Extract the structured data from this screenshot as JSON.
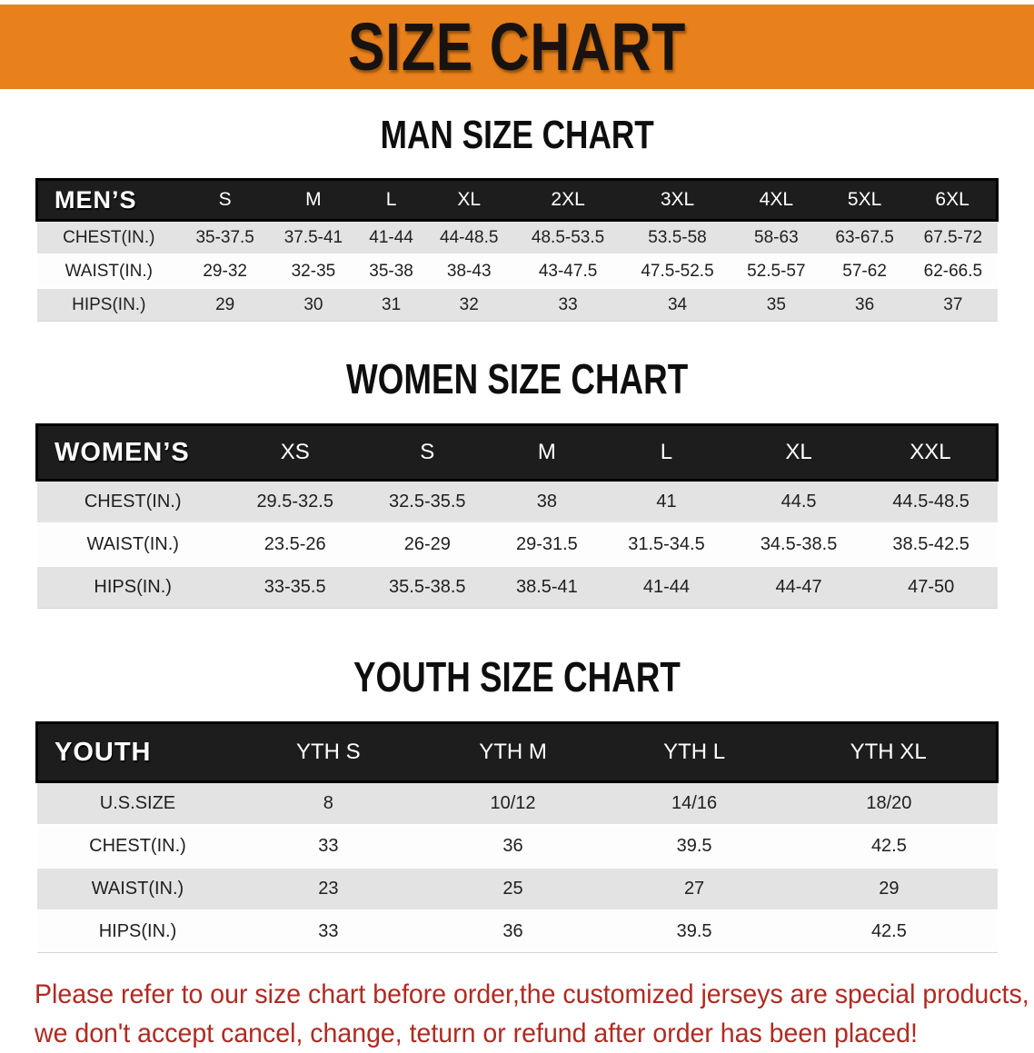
{
  "banner": {
    "title": "SIZE CHART",
    "bg_color": "#E8811B"
  },
  "sections": [
    {
      "heading": "MAN SIZE CHART",
      "table": {
        "header": [
          "MEN’S",
          "S",
          "M",
          "L",
          "XL",
          "2XL",
          "3XL",
          "4XL",
          "5XL",
          "6XL"
        ],
        "rows": [
          {
            "label": "CHEST(IN.)",
            "values": [
              "35-37.5",
              "37.5-41",
              "41-44",
              "44-48.5",
              "48.5-53.5",
              "53.5-58",
              "58-63",
              "63-67.5",
              "67.5-72"
            ]
          },
          {
            "label": "WAIST(IN.)",
            "values": [
              "29-32",
              "32-35",
              "35-38",
              "38-43",
              "43-47.5",
              "47.5-52.5",
              "52.5-57",
              "57-62",
              "62-66.5"
            ]
          },
          {
            "label": "HIPS(IN.)",
            "values": [
              "29",
              "30",
              "31",
              "32",
              "33",
              "34",
              "35",
              "36",
              "37"
            ]
          }
        ]
      }
    },
    {
      "heading": "WOMEN SIZE CHART",
      "table": {
        "header": [
          "WOMEN’S",
          "XS",
          "S",
          "M",
          "L",
          "XL",
          "XXL"
        ],
        "rows": [
          {
            "label": "CHEST(IN.)",
            "values": [
              "29.5-32.5",
              "32.5-35.5",
              "38",
              "41",
              "44.5",
              "44.5-48.5"
            ]
          },
          {
            "label": "WAIST(IN.)",
            "values": [
              "23.5-26",
              "26-29",
              "29-31.5",
              "31.5-34.5",
              "34.5-38.5",
              "38.5-42.5"
            ]
          },
          {
            "label": "HIPS(IN.)",
            "values": [
              "33-35.5",
              "35.5-38.5",
              "38.5-41",
              "41-44",
              "44-47",
              "47-50"
            ]
          }
        ]
      }
    },
    {
      "heading": "YOUTH SIZE CHART",
      "table": {
        "header": [
          "YOUTH",
          "YTH S",
          "YTH M",
          "YTH L",
          "YTH XL"
        ],
        "rows": [
          {
            "label": "U.S.SIZE",
            "values": [
              "8",
              "10/12",
              "14/16",
              "18/20"
            ]
          },
          {
            "label": "CHEST(IN.)",
            "values": [
              "33",
              "36",
              "39.5",
              "42.5"
            ]
          },
          {
            "label": "WAIST(IN.)",
            "values": [
              "23",
              "25",
              "27",
              "29"
            ]
          },
          {
            "label": "HIPS(IN.)",
            "values": [
              "33",
              "36",
              "39.5",
              "42.5"
            ]
          }
        ]
      }
    }
  ],
  "footer": {
    "line1": "Please refer to our size chart before order,the customized jerseys are special products,",
    "line2": "we don't accept cancel, change, teturn or refund after order has been placed!"
  },
  "colors": {
    "banner_orange": "#E8811B",
    "header_band_black": "#1D1D1D",
    "row_stripe_gray": "#E3E3E3",
    "notice_red": "#B02A22"
  }
}
